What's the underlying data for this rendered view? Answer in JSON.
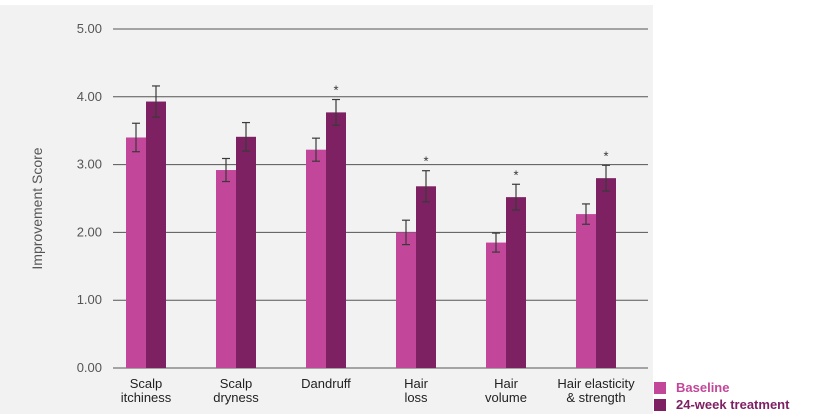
{
  "chart_data": {
    "type": "bar",
    "ylabel": "Improvement Score",
    "xlabel": "",
    "ylim": [
      0,
      5
    ],
    "yticks": [
      "0.00",
      "1.00",
      "2.00",
      "3.00",
      "4.00",
      "5.00"
    ],
    "grid": "horizontal",
    "legend_position": "bottom-right",
    "categories": [
      [
        "Scalp",
        "itchiness"
      ],
      [
        "Scalp",
        "dryness"
      ],
      [
        "Dandruff"
      ],
      [
        "Hair",
        "loss"
      ],
      [
        "Hair",
        "volume"
      ],
      [
        "Hair elasticity",
        "& strength"
      ]
    ],
    "series": [
      {
        "name": "Baseline",
        "color": "#c2479a",
        "values": [
          3.4,
          2.92,
          3.22,
          2.0,
          1.85,
          2.27
        ],
        "errors": [
          0.21,
          0.17,
          0.17,
          0.18,
          0.14,
          0.15
        ]
      },
      {
        "name": "24-week treatment",
        "color": "#7d2163",
        "values": [
          3.93,
          3.41,
          3.77,
          2.68,
          2.52,
          2.8
        ],
        "errors": [
          0.23,
          0.21,
          0.19,
          0.23,
          0.19,
          0.19
        ]
      }
    ],
    "significance_marks": [
      "",
      "",
      "*",
      "*",
      "*",
      "*"
    ]
  },
  "legend": {
    "items": [
      {
        "label": "Baseline",
        "color": "#c2479a"
      },
      {
        "label": "24-week treatment",
        "color": "#7d2163"
      }
    ]
  }
}
